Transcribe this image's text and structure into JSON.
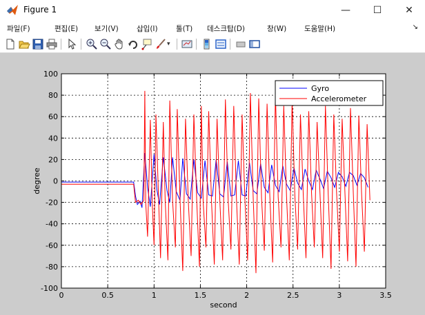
{
  "window": {
    "title": "Figure 1",
    "minimize": "—",
    "maximize": "☐",
    "close": "✕"
  },
  "menu": {
    "items": [
      "파일(F)",
      "편집(E)",
      "보기(V)",
      "삽입(I)",
      "툴(T)",
      "데스크탑(D)",
      "창(W)",
      "도움말(H)"
    ],
    "overflow": "↘"
  },
  "toolbar": {
    "tools": [
      "new-figure",
      "open-file",
      "save",
      "print",
      "pointer",
      "zoom-in",
      "zoom-out",
      "pan",
      "rotate-3d",
      "data-cursor",
      "brush",
      "brush-dropdown",
      "link-plot",
      "colorbar",
      "legend",
      "hide-plot-tools",
      "show-plot-tools"
    ]
  },
  "chart_data": {
    "type": "line",
    "title": "",
    "xlabel": "second",
    "ylabel": "degree",
    "xlim": [
      0,
      3.5
    ],
    "ylim": [
      -100,
      100
    ],
    "xticks": [
      "0",
      "0.5",
      "1",
      "1.5",
      "2",
      "2.5",
      "3",
      "3.5"
    ],
    "yticks": [
      "100",
      "80",
      "60",
      "40",
      "20",
      "0",
      "-20",
      "-40",
      "-60",
      "-80",
      "-100"
    ],
    "grid": true,
    "legend_position": "top-right",
    "series": [
      {
        "name": "Gyro",
        "color": "#0000ff",
        "x": [
          0,
          0.78,
          0.8,
          0.82,
          0.85,
          0.87,
          0.9,
          0.93,
          0.96,
          1.0,
          1.03,
          1.06,
          1.1,
          1.14,
          1.17,
          1.2,
          1.24,
          1.28,
          1.31,
          1.35,
          1.39,
          1.43,
          1.47,
          1.51,
          1.55,
          1.59,
          1.63,
          1.67,
          1.71,
          1.75,
          1.79,
          1.83,
          1.87,
          1.91,
          1.95,
          1.99,
          2.03,
          2.07,
          2.11,
          2.15,
          2.19,
          2.23,
          2.27,
          2.31,
          2.35,
          2.39,
          2.43,
          2.47,
          2.51,
          2.55,
          2.59,
          2.63,
          2.67,
          2.71,
          2.75,
          2.79,
          2.83,
          2.87,
          2.91,
          2.95,
          2.99,
          3.03,
          3.07,
          3.11,
          3.15,
          3.19,
          3.23,
          3.27,
          3.31
        ],
        "y": [
          -1,
          -1,
          -14,
          -22,
          -19,
          -25,
          26,
          -6,
          -24,
          25,
          -8,
          -22,
          22,
          -9,
          -20,
          22,
          -10,
          -18,
          21,
          -12,
          -17,
          20,
          -11,
          -16,
          19,
          -13,
          -14,
          20,
          -12,
          -15,
          18,
          -14,
          -13,
          19,
          -13,
          -14,
          17,
          -9,
          -12,
          16,
          -6,
          -11,
          15,
          -4,
          -10,
          14,
          -3,
          -9,
          12,
          -2,
          -8,
          11,
          0,
          -8,
          10,
          2,
          -7,
          9,
          3,
          -6,
          8,
          4,
          -5,
          8,
          5,
          -4,
          7,
          3,
          -6
        ]
      },
      {
        "name": "Accelerometer",
        "color": "#ff0000",
        "x": [
          0,
          0.78,
          0.8,
          0.83,
          0.86,
          0.89,
          0.9,
          0.91,
          0.93,
          0.96,
          0.98,
          1.0,
          1.02,
          1.05,
          1.07,
          1.1,
          1.12,
          1.15,
          1.17,
          1.2,
          1.23,
          1.25,
          1.28,
          1.31,
          1.34,
          1.37,
          1.4,
          1.43,
          1.46,
          1.49,
          1.51,
          1.53,
          1.56,
          1.59,
          1.62,
          1.65,
          1.68,
          1.71,
          1.74,
          1.77,
          1.8,
          1.83,
          1.86,
          1.89,
          1.92,
          1.95,
          1.98,
          2.01,
          2.04,
          2.07,
          2.1,
          2.13,
          2.16,
          2.19,
          2.22,
          2.25,
          2.28,
          2.31,
          2.34,
          2.37,
          2.4,
          2.43,
          2.46,
          2.49,
          2.52,
          2.55,
          2.58,
          2.61,
          2.64,
          2.67,
          2.7,
          2.73,
          2.76,
          2.79,
          2.82,
          2.85,
          2.88,
          2.91,
          2.94,
          2.97,
          3.0,
          3.03,
          3.06,
          3.09,
          3.12,
          3.15,
          3.18,
          3.21,
          3.24,
          3.27,
          3.3,
          3.33
        ],
        "y": [
          -3,
          -3,
          -20,
          -18,
          -22,
          -18,
          84,
          -20,
          -52,
          57,
          -20,
          -60,
          62,
          -20,
          -72,
          55,
          -18,
          -74,
          75,
          -18,
          -62,
          67,
          -16,
          -84,
          58,
          -20,
          -70,
          62,
          -18,
          -80,
          70,
          -20,
          -62,
          65,
          -18,
          -78,
          58,
          -18,
          -74,
          76,
          -18,
          -64,
          70,
          -18,
          -78,
          62,
          -16,
          -74,
          82,
          -16,
          -86,
          77,
          -16,
          -65,
          72,
          -14,
          -76,
          82,
          -15,
          -62,
          70,
          -14,
          -74,
          75,
          -14,
          -64,
          62,
          -12,
          -72,
          65,
          -12,
          -62,
          55,
          -10,
          -72,
          70,
          -12,
          -82,
          62,
          -10,
          -66,
          58,
          -10,
          -75,
          68,
          -10,
          -80,
          61,
          -12,
          -66,
          53,
          -18
        ]
      }
    ]
  }
}
